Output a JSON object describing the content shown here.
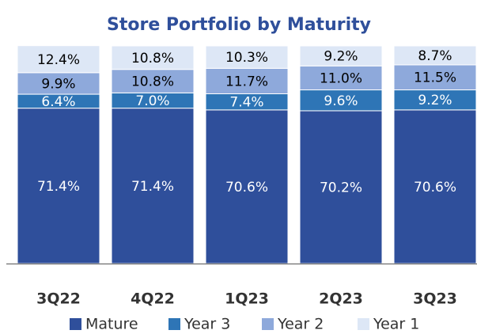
{
  "chart_data": {
    "type": "stacked_bar",
    "title": "Store Portfolio by Maturity",
    "categories": [
      "3Q22",
      "4Q22",
      "1Q23",
      "2Q23",
      "3Q23"
    ],
    "ylim": [
      0,
      100
    ],
    "series": [
      {
        "name": "Mature",
        "color": "#2f4f9b",
        "label_color": "#ffffff",
        "values": [
          71.4,
          71.4,
          70.6,
          70.2,
          70.6
        ],
        "value_labels": [
          "71.4%",
          "71.4%",
          "70.6%",
          "70.2%",
          "70.6%"
        ]
      },
      {
        "name": "Year 3",
        "color": "#2e75b6",
        "label_color": "#ffffff",
        "values": [
          6.4,
          7.0,
          7.4,
          9.6,
          9.2
        ],
        "value_labels": [
          "6.4%",
          "7.0%",
          "7.4%",
          "9.6%",
          "9.2%"
        ]
      },
      {
        "name": "Year 2",
        "color": "#8ea9db",
        "label_color": "#000000",
        "values": [
          9.9,
          10.8,
          11.7,
          11.0,
          11.5
        ],
        "value_labels": [
          "9.9%",
          "10.8%",
          "11.7%",
          "11.0%",
          "11.5%"
        ]
      },
      {
        "name": "Year 1",
        "color": "#dde7f6",
        "label_color": "#000000",
        "values": [
          12.4,
          10.8,
          10.3,
          9.2,
          8.7
        ],
        "value_labels": [
          "12.4%",
          "10.8%",
          "10.3%",
          "9.2%",
          "8.7%"
        ]
      }
    ]
  }
}
